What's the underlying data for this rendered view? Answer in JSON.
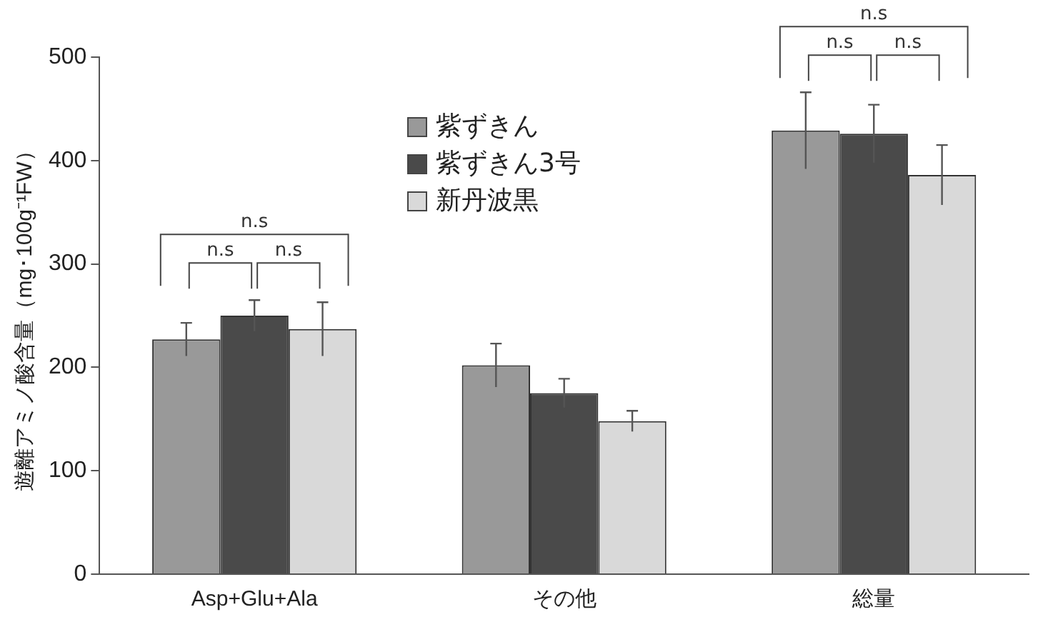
{
  "chart_data": {
    "type": "bar",
    "ylabel": "遊離アミノ酸含量（mg･100g⁻¹FW）",
    "categories": [
      "Asp+Glu+Ala",
      "その他",
      "総量"
    ],
    "series": [
      {
        "name": "紫ずきん",
        "color": "#999999",
        "values": [
          227,
          202,
          429
        ],
        "errors": [
          16,
          21,
          37
        ]
      },
      {
        "name": "紫ずきん3号",
        "color": "#4a4a4a",
        "values": [
          250,
          175,
          426
        ],
        "errors": [
          15,
          14,
          28
        ]
      },
      {
        "name": "新丹波黒",
        "color": "#d9d9d9",
        "values": [
          237,
          148,
          386
        ],
        "errors": [
          26,
          10,
          29
        ]
      }
    ],
    "ylim": [
      0,
      500
    ],
    "yticks": [
      0,
      100,
      200,
      300,
      400,
      500
    ],
    "grid": false,
    "legend": "top",
    "annotations": [
      "n.s",
      "n.s",
      "n.s",
      "n.s",
      "n.s",
      "n.s"
    ]
  }
}
